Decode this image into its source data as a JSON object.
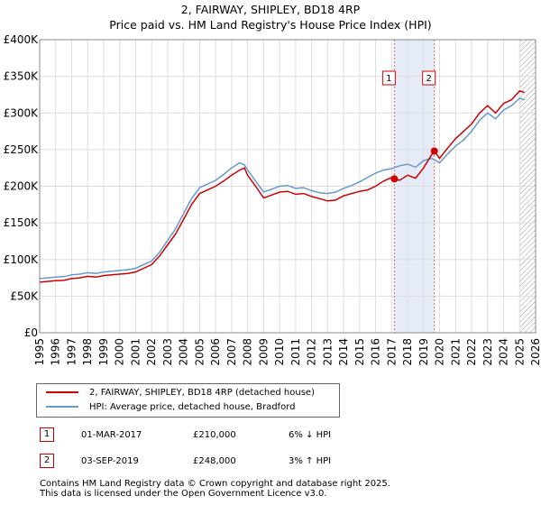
{
  "chart_data": {
    "type": "line",
    "title": "2, FAIRWAY, SHIPLEY, BD18 4RP",
    "subtitle": "Price paid vs. HM Land Registry's House Price Index (HPI)",
    "xlabel": "",
    "ylabel": "",
    "xlim": [
      1995,
      2026
    ],
    "ylim": [
      0,
      400000
    ],
    "grid": true,
    "y_ticks": [
      {
        "value": 0,
        "label": "£0"
      },
      {
        "value": 50000,
        "label": "£50K"
      },
      {
        "value": 100000,
        "label": "£100K"
      },
      {
        "value": 150000,
        "label": "£150K"
      },
      {
        "value": 200000,
        "label": "£200K"
      },
      {
        "value": 250000,
        "label": "£250K"
      },
      {
        "value": 300000,
        "label": "£300K"
      },
      {
        "value": 350000,
        "label": "£350K"
      },
      {
        "value": 400000,
        "label": "£400K"
      }
    ],
    "x_ticks": [
      "1995",
      "1996",
      "1997",
      "1998",
      "1999",
      "2000",
      "2001",
      "2002",
      "2003",
      "2004",
      "2005",
      "2006",
      "2007",
      "2008",
      "2009",
      "2010",
      "2011",
      "2012",
      "2013",
      "2014",
      "2015",
      "2016",
      "2017",
      "2018",
      "2019",
      "2020",
      "2021",
      "2022",
      "2023",
      "2024",
      "2025",
      "2026"
    ],
    "shaded_period": {
      "start": 2017.17,
      "end": 2019.67
    },
    "hatched_from": 2025.0,
    "series": [
      {
        "name": "2, FAIRWAY, SHIPLEY, BD18 4RP (detached house)",
        "color": "#cc0000",
        "x": [
          1995,
          1995.5,
          1996,
          1996.5,
          1997,
          1997.5,
          1998,
          1998.5,
          1999,
          1999.5,
          2000,
          2000.5,
          2001,
          2001.5,
          2002,
          2002.5,
          2003,
          2003.5,
          2004,
          2004.5,
          2005,
          2005.5,
          2006,
          2006.5,
          2007,
          2007.5,
          2007.8,
          2008,
          2008.5,
          2009,
          2009.5,
          2010,
          2010.5,
          2011,
          2011.5,
          2012,
          2012.5,
          2013,
          2013.5,
          2014,
          2014.5,
          2015,
          2015.5,
          2016,
          2016.5,
          2017,
          2017.17,
          2017.5,
          2018,
          2018.5,
          2019,
          2019.5,
          2019.67,
          2020,
          2020.5,
          2021,
          2021.5,
          2022,
          2022.5,
          2023,
          2023.5,
          2024,
          2024.5,
          2025,
          2025.3
        ],
        "values": [
          69000,
          70000,
          71000,
          71500,
          74000,
          75000,
          77000,
          76000,
          78000,
          79000,
          80000,
          81000,
          83000,
          88000,
          93000,
          105000,
          120000,
          135000,
          155000,
          175000,
          190000,
          195000,
          200000,
          207000,
          215000,
          222000,
          225000,
          215000,
          200000,
          184000,
          188000,
          192000,
          193000,
          189000,
          190000,
          186000,
          183000,
          180000,
          181000,
          187000,
          190000,
          193000,
          195000,
          200000,
          207000,
          212000,
          210000,
          208000,
          215000,
          211000,
          225000,
          243000,
          248000,
          238000,
          252000,
          265000,
          275000,
          285000,
          300000,
          310000,
          300000,
          313000,
          318000,
          330000,
          328000
        ]
      },
      {
        "name": "HPI: Average price, detached house, Bradford",
        "color": "#6699cc",
        "x": [
          1995,
          1995.5,
          1996,
          1996.5,
          1997,
          1997.5,
          1998,
          1998.5,
          1999,
          1999.5,
          2000,
          2000.5,
          2001,
          2001.5,
          2002,
          2002.5,
          2003,
          2003.5,
          2004,
          2004.5,
          2005,
          2005.5,
          2006,
          2006.5,
          2007,
          2007.5,
          2007.8,
          2008,
          2008.5,
          2009,
          2009.5,
          2010,
          2010.5,
          2011,
          2011.5,
          2012,
          2012.5,
          2013,
          2013.5,
          2014,
          2014.5,
          2015,
          2015.5,
          2016,
          2016.5,
          2017,
          2017.5,
          2018,
          2018.5,
          2019,
          2019.5,
          2020,
          2020.5,
          2021,
          2021.5,
          2022,
          2022.5,
          2023,
          2023.5,
          2024,
          2024.5,
          2025,
          2025.3
        ],
        "values": [
          74000,
          75000,
          76000,
          76500,
          79000,
          80000,
          82000,
          81000,
          83000,
          84000,
          85000,
          86000,
          88000,
          93000,
          98000,
          110000,
          126000,
          142000,
          163000,
          183000,
          198000,
          203000,
          208000,
          216000,
          225000,
          232000,
          229000,
          222000,
          207000,
          192000,
          196000,
          200000,
          201000,
          197000,
          198000,
          194000,
          191000,
          190000,
          192000,
          197000,
          201000,
          206000,
          212000,
          218000,
          222000,
          224000,
          228000,
          230000,
          226000,
          235000,
          238000,
          232000,
          244000,
          255000,
          263000,
          275000,
          290000,
          300000,
          292000,
          304000,
          310000,
          320000,
          318000
        ]
      }
    ],
    "annotations": [
      {
        "label": "1",
        "x": 2017.17,
        "y": 210000
      },
      {
        "label": "2",
        "x": 2019.67,
        "y": 248000
      }
    ]
  },
  "legend": {
    "series_1": "2, FAIRWAY, SHIPLEY, BD18 4RP (detached house)",
    "series_2": "HPI: Average price, detached house, Bradford"
  },
  "sales": [
    {
      "num": "1",
      "date": "01-MAR-2017",
      "price": "£210,000",
      "hpi": "6% ↓ HPI"
    },
    {
      "num": "2",
      "date": "03-SEP-2019",
      "price": "£248,000",
      "hpi": "3% ↑ HPI"
    }
  ],
  "footer": {
    "line1": "Contains HM Land Registry data © Crown copyright and database right 2025.",
    "line2": "This data is licensed under the Open Government Licence v3.0."
  },
  "colors": {
    "price": "#cc0000",
    "hpi": "#6699cc",
    "shade": "#e6ecf7",
    "grid": "#dddddd"
  }
}
